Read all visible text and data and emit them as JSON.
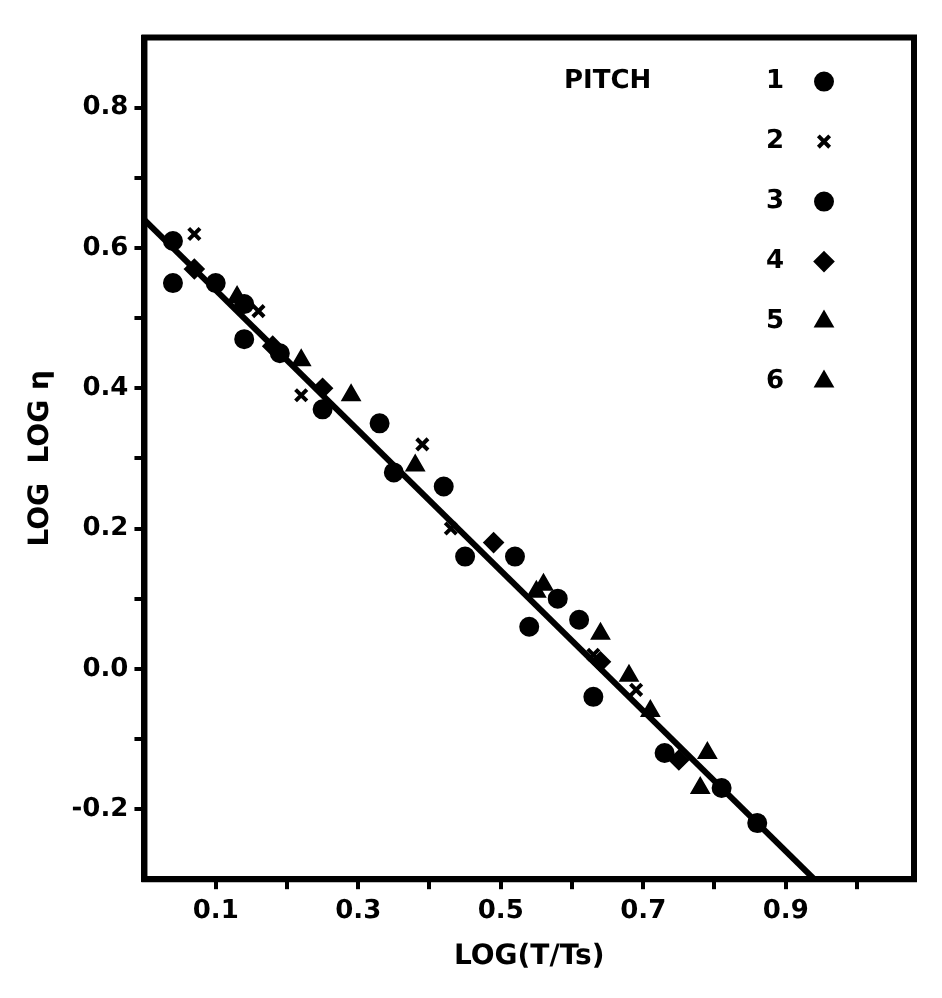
{
  "chart_data": {
    "type": "scatter",
    "xlabel": "LOG(T/Ts)",
    "ylabel": "LOG  LOG η",
    "legend_title": "PITCH",
    "legend": "top right",
    "grid": false,
    "xlim": [
      0,
      1.08
    ],
    "ylim": [
      -0.3,
      0.9
    ],
    "xticks": [
      {
        "value": 0.1,
        "label": "0.1"
      },
      {
        "value": 0.2,
        "label": null
      },
      {
        "value": 0.3,
        "label": "0.3"
      },
      {
        "value": 0.4,
        "label": null
      },
      {
        "value": 0.5,
        "label": "0.5"
      },
      {
        "value": 0.6,
        "label": null
      },
      {
        "value": 0.7,
        "label": "0.7"
      },
      {
        "value": 0.8,
        "label": null
      },
      {
        "value": 0.9,
        "label": "0.9"
      },
      {
        "value": 1.0,
        "label": null
      }
    ],
    "yticks": [
      {
        "value": -0.2,
        "label": "-0.2"
      },
      {
        "value": -0.1,
        "label": null
      },
      {
        "value": 0.0,
        "label": "0.0"
      },
      {
        "value": 0.1,
        "label": null
      },
      {
        "value": 0.2,
        "label": "0.2"
      },
      {
        "value": 0.3,
        "label": null
      },
      {
        "value": 0.4,
        "label": "0.4"
      },
      {
        "value": 0.5,
        "label": null
      },
      {
        "value": 0.6,
        "label": "0.6"
      },
      {
        "value": 0.7,
        "label": null
      },
      {
        "value": 0.8,
        "label": "0.8"
      }
    ],
    "series": [
      {
        "name": "1",
        "color": "#000000",
        "marker": "circle",
        "x": [
          0.04,
          0.14,
          0.25,
          0.35,
          0.45,
          0.54,
          0.63,
          0.81
        ],
        "values": [
          0.55,
          0.47,
          0.37,
          0.28,
          0.16,
          0.06,
          -0.04,
          -0.17
        ]
      },
      {
        "name": "2",
        "color": "#000000",
        "marker": "cross",
        "x": [
          0.07,
          0.16,
          0.22,
          0.39,
          0.43,
          0.63,
          0.69
        ],
        "values": [
          0.62,
          0.51,
          0.39,
          0.32,
          0.2,
          0.02,
          -0.03
        ]
      },
      {
        "name": "3",
        "color": "#000000",
        "marker": "circle",
        "x": [
          0.04,
          0.1,
          0.14,
          0.19,
          0.33,
          0.42,
          0.52,
          0.58,
          0.61,
          0.73,
          0.86
        ],
        "values": [
          0.61,
          0.55,
          0.52,
          0.45,
          0.35,
          0.26,
          0.16,
          0.1,
          0.07,
          -0.12,
          -0.22
        ]
      },
      {
        "name": "4",
        "color": "#000000",
        "marker": "diamond",
        "x": [
          0.07,
          0.18,
          0.25,
          0.49,
          0.64,
          0.75
        ],
        "values": [
          0.57,
          0.46,
          0.4,
          0.18,
          0.01,
          -0.13
        ]
      },
      {
        "name": "5",
        "color": "#000000",
        "marker": "triangle",
        "x": [
          0.13,
          0.55,
          0.71,
          0.78
        ],
        "values": [
          0.53,
          0.11,
          -0.06,
          -0.17
        ]
      },
      {
        "name": "6",
        "color": "#000000",
        "marker": "triangle",
        "x": [
          0.22,
          0.29,
          0.38,
          0.56,
          0.64,
          0.68,
          0.79
        ],
        "values": [
          0.44,
          0.39,
          0.29,
          0.12,
          0.05,
          -0.01,
          -0.12
        ]
      },
      {
        "type": "line",
        "color": "#000000",
        "marker": "none",
        "line_style": "solid",
        "x": [
          0,
          0.94
        ],
        "values": [
          0.64,
          -0.3
        ]
      }
    ]
  }
}
